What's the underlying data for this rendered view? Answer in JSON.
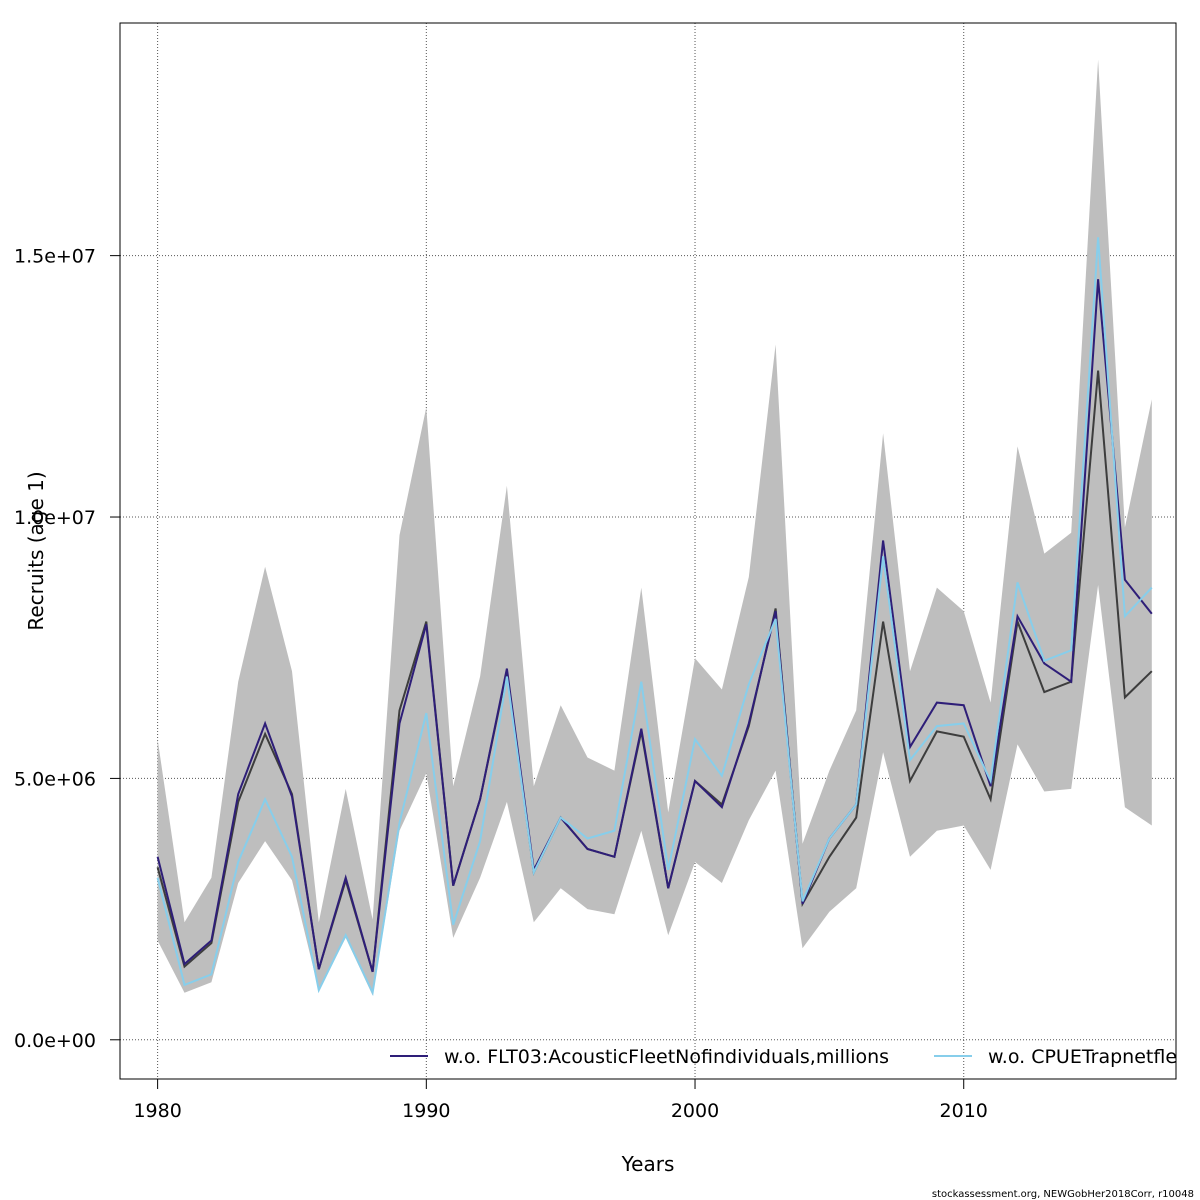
{
  "chart_data": {
    "type": "line",
    "xlabel": "Years",
    "ylabel": "Recruits (age 1)",
    "xlim": [
      1978.6,
      2017.9
    ],
    "ylim": [
      -750000,
      19450000
    ],
    "grid": true,
    "x_ticks": [
      1980,
      1990,
      2000,
      2010
    ],
    "x_tick_labels": [
      "1980",
      "1990",
      "2000",
      "2010"
    ],
    "y_ticks": [
      0,
      5000000,
      10000000,
      15000000
    ],
    "y_tick_labels": [
      "0.0e+00",
      "5.0e+06",
      "1.0e+07",
      "1.5e+07"
    ],
    "x": [
      1980,
      1981,
      1982,
      1983,
      1984,
      1985,
      1986,
      1987,
      1988,
      1989,
      1990,
      1991,
      1992,
      1993,
      1994,
      1995,
      1996,
      1997,
      1998,
      1999,
      2000,
      2001,
      2002,
      2003,
      2004,
      2005,
      2006,
      2007,
      2008,
      2009,
      2010,
      2011,
      2012,
      2013,
      2014,
      2015,
      2016,
      2017
    ],
    "band": {
      "color": "#bebebe",
      "upper": [
        5750000,
        2250000,
        3100000,
        6850000,
        9050000,
        7050000,
        2250000,
        4800000,
        2300000,
        9650000,
        12100000,
        4850000,
        6950000,
        10600000,
        4850000,
        6400000,
        5400000,
        5150000,
        8650000,
        4350000,
        7300000,
        6700000,
        8850000,
        13300000,
        3750000,
        5150000,
        6300000,
        11600000,
        7050000,
        8650000,
        8200000,
        6450000,
        11350000,
        9300000,
        9700000,
        18750000,
        9800000,
        12250000
      ],
      "lower": [
        1900000,
        900000,
        1100000,
        3000000,
        3800000,
        3050000,
        950000,
        1950000,
        850000,
        4000000,
        5100000,
        1950000,
        3100000,
        4550000,
        2250000,
        2900000,
        2500000,
        2400000,
        4000000,
        2000000,
        3400000,
        3000000,
        4200000,
        5150000,
        1750000,
        2450000,
        2900000,
        5500000,
        3500000,
        4000000,
        4100000,
        3250000,
        5650000,
        4750000,
        4800000,
        8700000,
        4450000,
        4100000
      ]
    },
    "series": [
      {
        "color": "#3d3d3d",
        "values": [
          3300000,
          1400000,
          1850000,
          4550000,
          5850000,
          4700000,
          1350000,
          3050000,
          1300000,
          6300000,
          8000000,
          2950000,
          4600000,
          7050000,
          3200000,
          4250000,
          3650000,
          3500000,
          5900000,
          2900000,
          4950000,
          4500000,
          6000000,
          8250000,
          2600000,
          3500000,
          4250000,
          8000000,
          4950000,
          5900000,
          5800000,
          4600000,
          8000000,
          6650000,
          6850000,
          12800000,
          6550000,
          7050000
        ]
      },
      {
        "name": "w.o. FLT03:AcousticFleetNofindividuals,millions",
        "color": "#2e1e78",
        "values": [
          3500000,
          1450000,
          1900000,
          4700000,
          6050000,
          4650000,
          1350000,
          3100000,
          1300000,
          6050000,
          7950000,
          2950000,
          4600000,
          7100000,
          3250000,
          4250000,
          3650000,
          3500000,
          5950000,
          2900000,
          4950000,
          4450000,
          6050000,
          8200000,
          2600000,
          3850000,
          4500000,
          9550000,
          5600000,
          6450000,
          6400000,
          4850000,
          8100000,
          7200000,
          6850000,
          14550000,
          8800000,
          8150000
        ]
      },
      {
        "name": "w.o. CPUETrapnetfleet",
        "color": "#87ceeb",
        "values": [
          3100000,
          1050000,
          1250000,
          3400000,
          4600000,
          3500000,
          950000,
          2000000,
          900000,
          4150000,
          6250000,
          2200000,
          3800000,
          6950000,
          3200000,
          4250000,
          3850000,
          4000000,
          6850000,
          3250000,
          5750000,
          5050000,
          6800000,
          8050000,
          2650000,
          3850000,
          4500000,
          9250000,
          5350000,
          6000000,
          6050000,
          4950000,
          8750000,
          7250000,
          7450000,
          15350000,
          8100000,
          8650000
        ]
      }
    ],
    "legend": {
      "position": "bottom",
      "entries": [
        "w.o. FLT03:AcousticFleetNofindividuals,millions",
        "w.o. CPUETrapnetfleet"
      ]
    },
    "credit": "stockassessment.org, NEWGobHer2018Corr, r10048"
  }
}
